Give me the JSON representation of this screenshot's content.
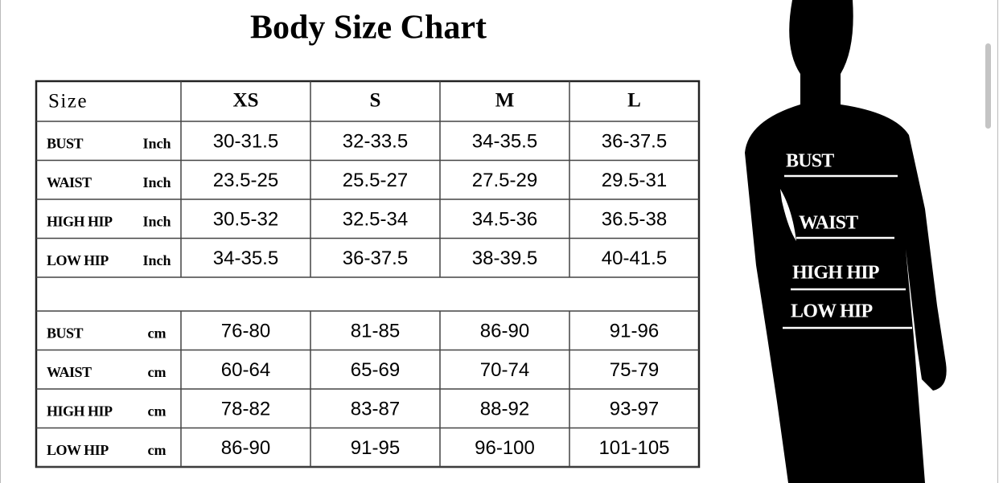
{
  "title": "Body Size Chart",
  "table": {
    "header": [
      "Size",
      "XS",
      "S",
      "M",
      "L"
    ],
    "sections": [
      {
        "rows": [
          [
            "BUST",
            "Inch",
            "30-31.5",
            "32-33.5",
            "34-35.5",
            "36-37.5"
          ],
          [
            "WAIST",
            "Inch",
            "23.5-25",
            "25.5-27",
            "27.5-29",
            "29.5-31"
          ],
          [
            "HIGH HIP",
            "Inch",
            "30.5-32",
            "32.5-34",
            "34.5-36",
            "36.5-38"
          ],
          [
            "LOW HIP",
            "Inch",
            "34-35.5",
            "36-37.5",
            "38-39.5",
            "40-41.5"
          ]
        ]
      },
      {
        "rows": [
          [
            "BUST",
            "cm",
            "76-80",
            "81-85",
            "86-90",
            "91-96"
          ],
          [
            "WAIST",
            "cm",
            "60-64",
            "65-69",
            "70-74",
            "75-79"
          ],
          [
            "HIGH HIP",
            "cm",
            "78-82",
            "83-87",
            "88-92",
            "93-97"
          ],
          [
            "LOW HIP",
            "cm",
            "86-90",
            "91-95",
            "96-100",
            "101-105"
          ]
        ]
      }
    ]
  },
  "figure": {
    "labels": [
      "BUST",
      "WAIST",
      "HIGH HIP",
      "LOW HIP"
    ]
  }
}
